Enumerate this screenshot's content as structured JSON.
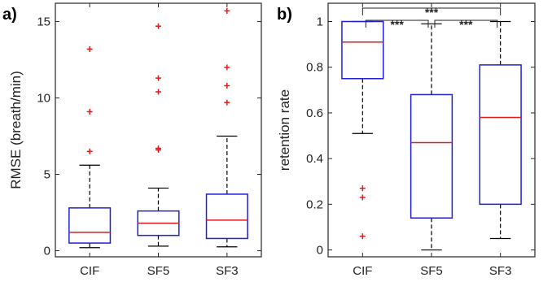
{
  "chart_data": [
    {
      "type": "box",
      "panel_label": "a)",
      "ylabel": "RMSE (breath/min)",
      "categories": [
        "CIF",
        "SF5",
        "SF3"
      ],
      "ylim": [
        -0.4,
        16.2
      ],
      "yticks": [
        0,
        5,
        10,
        15
      ],
      "ytick_labels": [
        "0",
        "5",
        "10",
        "15"
      ],
      "grid": false,
      "box_color": "#1f1fd6",
      "median_color": "#e01b1b",
      "outlier_color": "#e01b1b",
      "boxes": [
        {
          "name": "CIF",
          "whisker_low": 0.2,
          "q1": 0.5,
          "median": 1.2,
          "q3": 2.8,
          "whisker_high": 5.6,
          "outliers": [
            6.5,
            9.1,
            13.2
          ]
        },
        {
          "name": "SF5",
          "whisker_low": 0.3,
          "q1": 1.0,
          "median": 1.8,
          "q3": 2.6,
          "whisker_high": 4.1,
          "outliers": [
            6.6,
            6.7,
            10.4,
            11.3,
            14.7
          ]
        },
        {
          "name": "SF3",
          "whisker_low": 0.25,
          "q1": 0.8,
          "median": 2.0,
          "q3": 3.7,
          "whisker_high": 7.5,
          "outliers": [
            9.7,
            10.8,
            12.0,
            15.7
          ]
        }
      ]
    },
    {
      "type": "box",
      "panel_label": "b)",
      "ylabel": "retention rate",
      "categories": [
        "CIF",
        "SF5",
        "SF3"
      ],
      "ylim": [
        -0.03,
        1.08
      ],
      "yticks": [
        0,
        0.2,
        0.4,
        0.6,
        0.8,
        1
      ],
      "ytick_labels": [
        "0",
        "0.2",
        "0.4",
        "0.6",
        "0.8",
        "1"
      ],
      "grid": false,
      "box_color": "#1f1fd6",
      "median_color": "#e01b1b",
      "outlier_color": "#e01b1b",
      "boxes": [
        {
          "name": "CIF",
          "whisker_low": 0.51,
          "q1": 0.75,
          "median": 0.91,
          "q3": 1.0,
          "whisker_high": 1.0,
          "outliers": [
            0.27,
            0.23,
            0.06
          ]
        },
        {
          "name": "SF5",
          "whisker_low": 0.0,
          "q1": 0.14,
          "median": 0.47,
          "q3": 0.68,
          "whisker_high": 0.99,
          "outliers": []
        },
        {
          "name": "SF3",
          "whisker_low": 0.05,
          "q1": 0.2,
          "median": 0.58,
          "q3": 0.81,
          "whisker_high": 1.0,
          "outliers": []
        }
      ],
      "significance": [
        {
          "from": "CIF",
          "to": "SF3",
          "label": "***"
        },
        {
          "from": "CIF",
          "to": "SF5",
          "label": "***"
        },
        {
          "from": "SF5",
          "to": "SF3",
          "label": "***"
        }
      ]
    }
  ]
}
